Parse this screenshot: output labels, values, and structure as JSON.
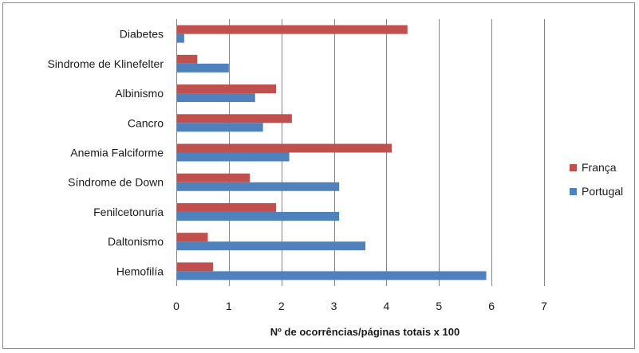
{
  "chart_data": {
    "type": "bar",
    "orientation": "horizontal",
    "categories": [
      "Diabetes",
      "Sindrome de Klinefelter",
      "Albinismo",
      "Cancro",
      "Anemia Falciforme",
      "Síndrome de Down",
      "Fenilcetonuria",
      "Daltonismo",
      "Hemofilía"
    ],
    "series": [
      {
        "name": "França",
        "color": "#c0504d",
        "values": [
          4.4,
          0.4,
          1.9,
          2.2,
          4.1,
          1.4,
          1.9,
          0.6,
          0.7
        ]
      },
      {
        "name": "Portugal",
        "color": "#4f81bd",
        "values": [
          0.15,
          1.0,
          1.5,
          1.65,
          2.15,
          3.1,
          3.1,
          3.6,
          5.9
        ]
      }
    ],
    "xlabel": "Nº de ocorrências/páginas totais x 100",
    "xlim": [
      0,
      7
    ],
    "xticks": [
      "0",
      "1",
      "2",
      "3",
      "4",
      "5",
      "6",
      "7"
    ],
    "grid": "vertical major gridlines",
    "legend_position": "right"
  }
}
